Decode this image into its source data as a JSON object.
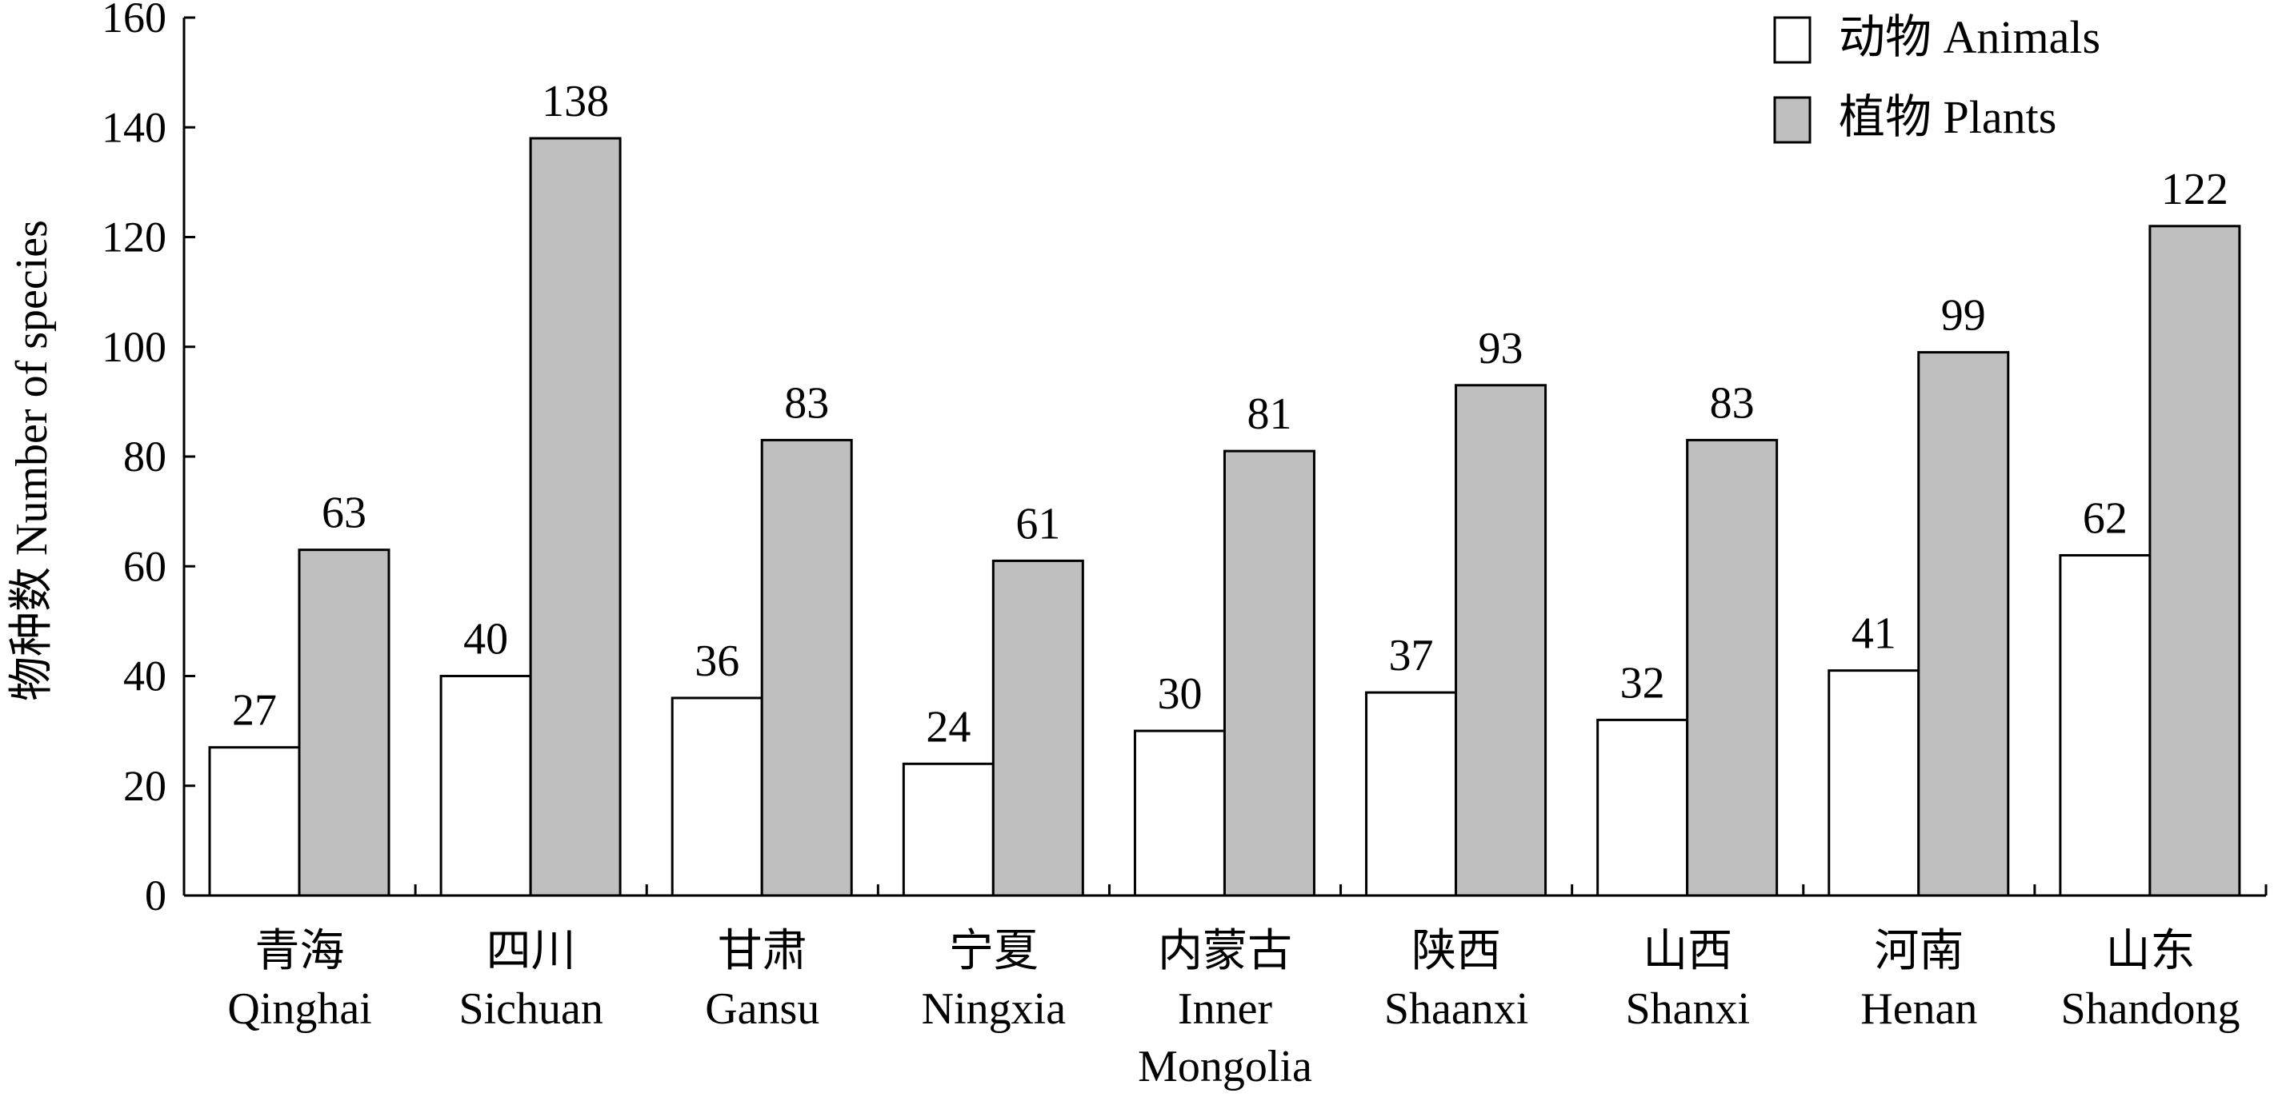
{
  "chart_data": {
    "type": "bar",
    "title": "",
    "xlabel": "",
    "ylabel": "物种数 Number of species",
    "ylim": [
      0,
      160
    ],
    "yticks": [
      0,
      20,
      40,
      60,
      80,
      100,
      120,
      140,
      160
    ],
    "grid": false,
    "legend_position": "top-right",
    "categories": [
      [
        "青海",
        "Qinghai"
      ],
      [
        "四川",
        "Sichuan"
      ],
      [
        "甘肃",
        "Gansu"
      ],
      [
        "宁夏",
        "Ningxia"
      ],
      [
        "内蒙古",
        "Inner",
        "Mongolia"
      ],
      [
        "陕西",
        "Shaanxi"
      ],
      [
        "山西",
        "Shanxi"
      ],
      [
        "河南",
        "Henan"
      ],
      [
        "山东",
        "Shandong"
      ]
    ],
    "series": [
      {
        "name": "动物 Animals",
        "color": "#ffffff",
        "values": [
          27,
          40,
          36,
          24,
          30,
          37,
          32,
          41,
          62
        ]
      },
      {
        "name": "植物 Plants",
        "color": "#bfbfbf",
        "values": [
          63,
          138,
          83,
          61,
          81,
          93,
          83,
          99,
          122
        ]
      }
    ]
  }
}
